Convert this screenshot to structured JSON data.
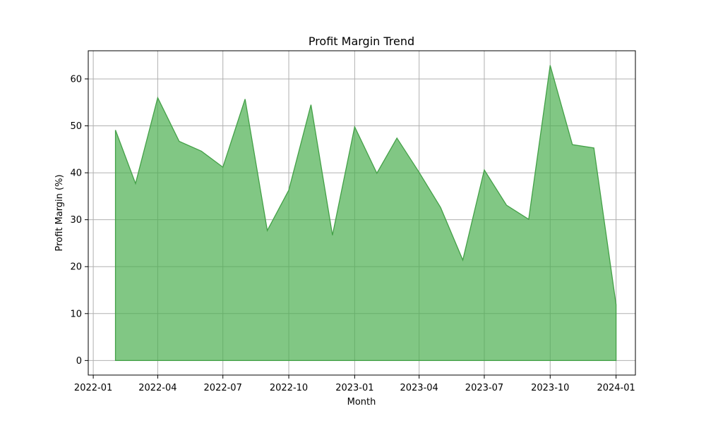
{
  "chart_data": {
    "type": "area",
    "title": "Profit Margin Trend",
    "xlabel": "Month",
    "ylabel": "Profit Margin (%)",
    "grid": true,
    "fill_color": "#4caf50",
    "line_color": "#43a047",
    "x": [
      "2022-02-01",
      "2022-03-01",
      "2022-04-01",
      "2022-05-01",
      "2022-06-01",
      "2022-07-01",
      "2022-08-01",
      "2022-09-01",
      "2022-10-01",
      "2022-11-01",
      "2022-12-01",
      "2023-01-01",
      "2023-02-01",
      "2023-03-01",
      "2023-04-01",
      "2023-05-01",
      "2023-06-01",
      "2023-07-01",
      "2023-08-01",
      "2023-09-01",
      "2023-10-01",
      "2023-11-01",
      "2023-12-01",
      "2024-01-01"
    ],
    "values": [
      49.1,
      37.7,
      56.0,
      46.7,
      44.6,
      41.2,
      55.7,
      27.7,
      36.3,
      54.5,
      26.7,
      49.8,
      39.9,
      47.4,
      40.1,
      32.6,
      21.4,
      40.6,
      33.1,
      30.1,
      62.9,
      46.0,
      45.3,
      11.9
    ],
    "xlim": [
      "2021-12-25",
      "2024-01-28"
    ],
    "ylim": [
      -3.1,
      66.0
    ],
    "x_ticks": [
      "2022-01-01",
      "2022-04-01",
      "2022-07-01",
      "2022-10-01",
      "2023-01-01",
      "2023-04-01",
      "2023-07-01",
      "2023-10-01",
      "2024-01-01"
    ],
    "x_tick_labels": [
      "2022-01",
      "2022-04",
      "2022-07",
      "2022-10",
      "2023-01",
      "2023-04",
      "2023-07",
      "2023-10",
      "2024-01"
    ],
    "y_ticks": [
      0,
      10,
      20,
      30,
      40,
      50,
      60
    ],
    "y_tick_labels": [
      "0",
      "10",
      "20",
      "30",
      "40",
      "50",
      "60"
    ]
  }
}
